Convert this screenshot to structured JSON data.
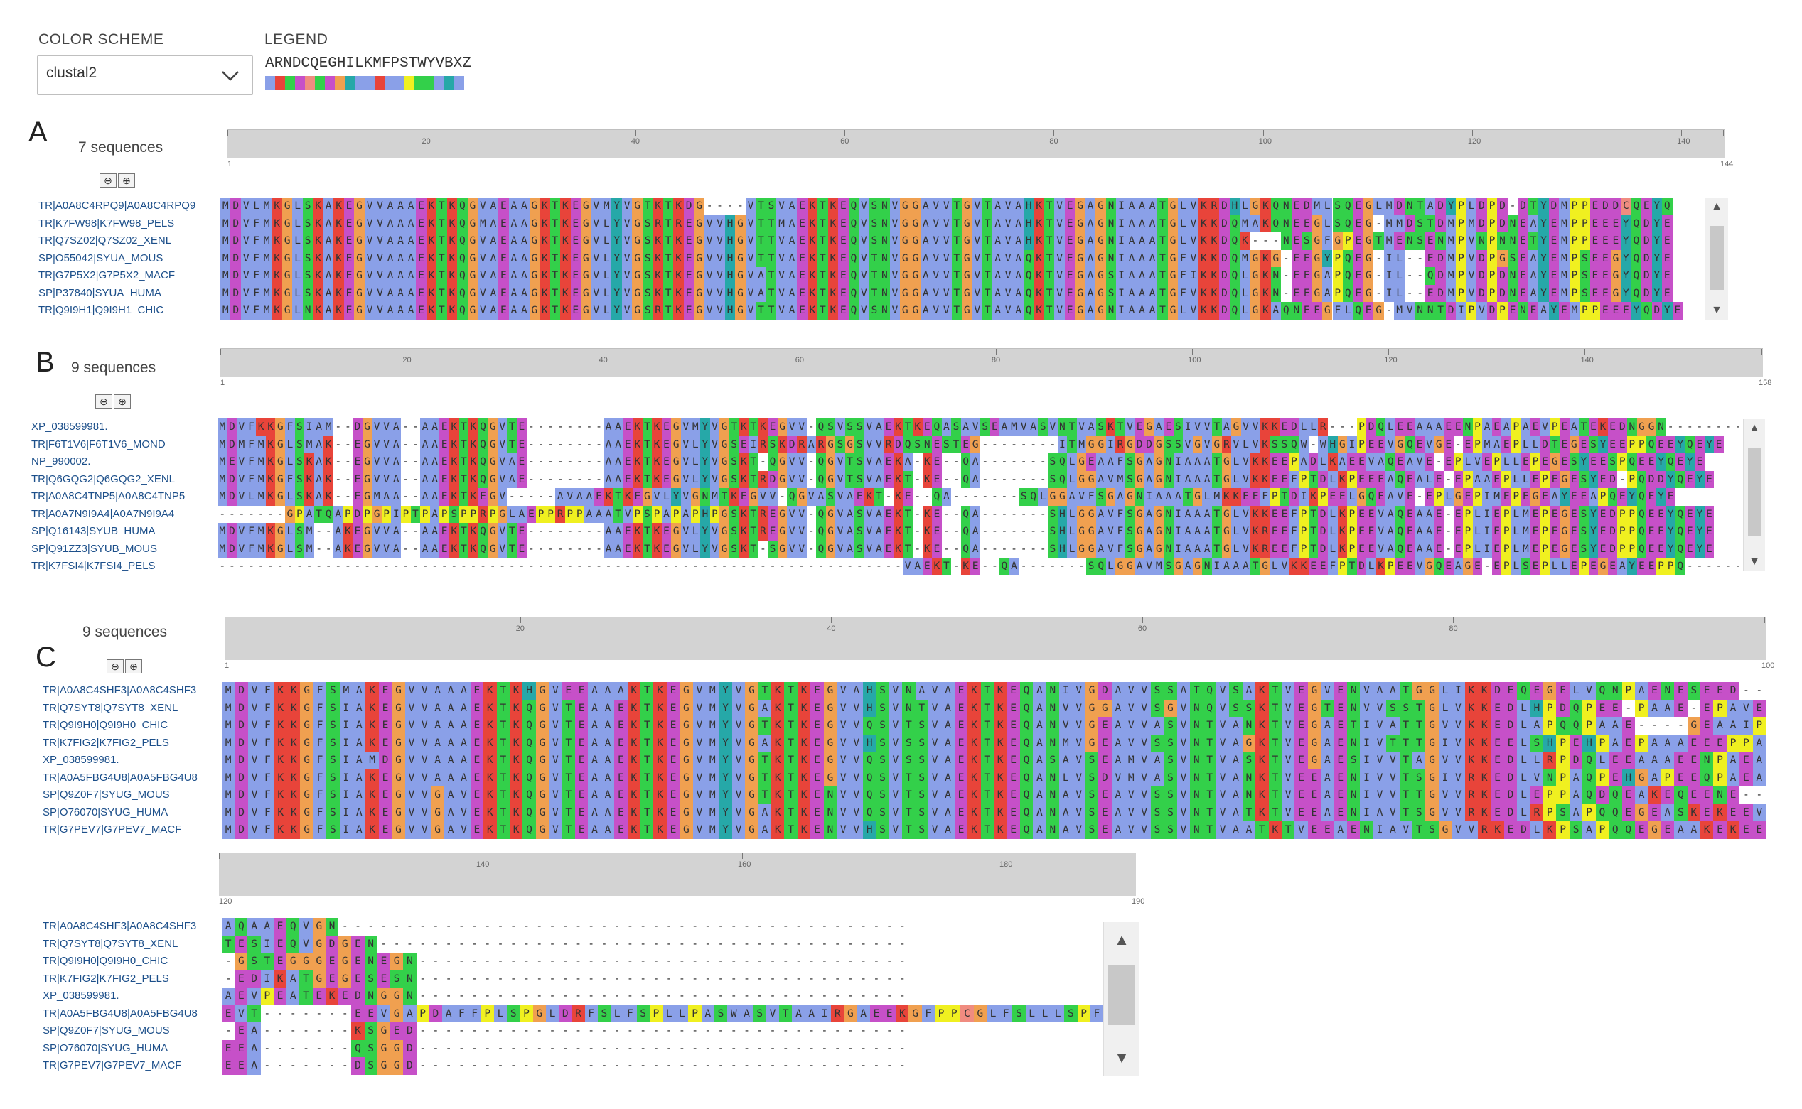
{
  "color_scheme": {
    "label": "COLOR SCHEME",
    "value": "clustal2"
  },
  "legend": {
    "label": "LEGEND",
    "letters": "ARNDCQEGHILKMFPSTWYVBXZ",
    "colors": [
      "#8aa0e8",
      "#e8443a",
      "#33d04a",
      "#c650c8",
      "#f08c80",
      "#33d04a",
      "#c650c8",
      "#f0a050",
      "#26a8a8",
      "#8aa0e8",
      "#8aa0e8",
      "#e8443a",
      "#8aa0e8",
      "#8aa0e8",
      "#f0f020",
      "#33d04a",
      "#33d04a",
      "#8aa0e8",
      "#26a8a8",
      "#8aa0e8",
      "#ffffff",
      "#ffffff",
      "#ffffff"
    ]
  },
  "panels": {
    "A": {
      "letter": "A",
      "count_label": "7 sequences",
      "ruler_ticks": [
        "1",
        "20",
        "40",
        "60",
        "80",
        "100",
        "120",
        "140",
        "144"
      ],
      "names": [
        "TR|A0A8C4RPQ9|A0A8C4RPQ9",
        "TR|K7FW98|K7FW98_PELS",
        "TR|Q7SZ02|Q7SZ02_XENL",
        "SP|O55042|SYUA_MOUS",
        "TR|G7P5X2|G7P5X2_MACF",
        "SP|P37840|SYUA_HUMA",
        "TR|Q9I9H1|Q9I9H1_CHIC"
      ],
      "rows": [
        "MDVLMKGLSKAKEGVVAAAEKTKQGVAEAAGKTKEGVMYVGTKTKDG----VTSVAEKTKEQVSNVGGAVVTGVTAVAHKTVEGAGNIAAATGLVKRDHLGKQNEDMLSQEGLMDNTADYPLDPD-DTYDMPPEDDCQEYQ",
        "MDVFMKGLSKAKEGVVAAAEKTKQGMAEAAGKTKEGVLYVGSRTREGVVHGVTTMAEKTKEQVSNVGGAVVTGVTAVAHKTVEGAGNIAAATGLVKKDQMAKQNEEGLSQEG-MMDSTDMPMDPDNEAYEMPPEEEYQDYE",
        "MDVFMKGLSKAKEGVVAAAEKTKQGVAEAAGKTKEGVLYVGSKTKEGVVHGVTTVAEKTKEQVSNVGGAVVTGVTAVAHKTVEGAGNIAAATGLVKKDQK---NESGFGPEGTMENSENMPVNPNNETYEMPPEEEYQDYE",
        "MDVFMKGLSKAKEGVVAAAEKTKQGVAEAAGKTKEGVLYVGSKTKEGVVHGVTTVAEKTKEQVTNVGGAVVTGVTAVAQKTVEGAGNIAAATGFVKKDQMGKG-EEGYPQEG-IL--EDMPVDPGSEAYEMPSEEGYQDYE",
        "MDVFMKGLSKAKEGVVAAAEKTKQGVAEAAGKTKEGVLYVGSKTKEGVVHGVATVAEKTKEQVTNVGGAVVTGVTAVAQKTVEGAGSIAAATGFIKKDQLGKN-EEGAPQEG-IL--QDMPVDPDNEAYEMPSEEGYQDYE",
        "MDVFMKGLSKAKEGVVAAAEKTKQGVAEAAGKTKEGVLYVGSKTKEGVVHGVATVAEKTKEQVTNVGGAVVTGVTAVAQKTVEGAGSIAAATGFVKKDQLGKN-EEGAPQEG-IL--EDMPVDPDNEAYEMPSEEGYQDYE",
        "MDVFMKGLNKAKEGVVAAAEKTKQGVAEAAGKTKEGVLYVGSRTKEGVVHGVTTVAEKTKEQVSNVGGAVVTGVTAVAQKTVEGAGNIAAATGLVKKDQLGKAQNEEGFLQEG-MVNNTDIPVDPENEAYEMPPEEEYQDYE"
      ]
    },
    "B": {
      "letter": "B",
      "count_label": "9 sequences",
      "ruler_ticks": [
        "1",
        "20",
        "40",
        "60",
        "80",
        "100",
        "120",
        "140",
        "158"
      ],
      "names": [
        "XP_038599981.",
        "TR|F6T1V6|F6T1V6_MOND",
        "NP_990002.",
        "TR|Q6GQG2|Q6GQG2_XENL",
        "TR|A0A8C4TNP5|A0A8C4TNP5",
        "TR|A0A7N9I9A4|A0A7N9I9A4_",
        "SP|Q16143|SYUB_HUMA",
        "SP|Q91ZZ3|SYUB_MOUS",
        "TR|K7FSI4|K7FSI4_PELS"
      ],
      "rows": [
        "MDVFKKGFSIAM--DGVVA--AAEKTKQGVTE--------AAEKTKEGVMYVGTKTKEGVV-QSVSSVAEKTKEQASAVSEAMVASVNTVASKTVEGAESIVVTAGVVKKEDLLR---PDQLEEAAAEENPAEAPAEVPEATEKEDNGGN--------",
        "MDMFMKGLSMAK--EGVVA--AAEKTKQGVTE--------AAEKTKEGVLYVGSEIRSKDRARGSGSVVRDQSNESTEG--------ITMGGIRGDDGSSVGVGRVLVKSSQW-WHGIPEEVGQEVGE-EPMAEPLLDTEGESYEEPPQEEYQEYE",
        "MEVFMKGLSKAK--EGVVA--AAEKTKQGVAE--------AAEKTKEGVLYVGSKT-QGVV-QGVTSVAEKA-KE--QA-------SQLGEAAFSGAGNIAAATGLVKKEEPADLKAEEVAQEAVE-EPLVEPLLEPEGESYEESPQEEYQEYE",
        "MDVFMKGFSKAK--EGVVA--AAEKTKQGVAE--------AAEKTKEGVLYVGSKTRDGVV-QGVTSVAEKT-KE--QA-------SQLGGAVMSGAGNIAAATGLVKKEEFPTDLKPEEEAQEALE-EPAAEPLLEPEGESYED-PQDDYQEYE",
        "MDVLMKGLSKAK--EGMAA--AAEKTKEGV-----AVAAEKTKEGVLYVGNMTKEGVV-QGVASVAEKT-KE--QA-------SQLGGAVFSGAGNIAAATGLMKKEEFPTDIKPEELGQEAVE-EPLGEPIMEPEGEAYEEAPQEYQEYE",
        "-------GPATQAPDPGPIPTPAPSPPRPGLAEPPRPPAAATVPSPAPAPHPGSKTREGVV-QGVASVAEKT-KE--QA-------SHLGGAVFSGAGNIAAATGLVKKEEFPTDLKPEEVAQEAAE-EPLIEPLMEPEGESYEDPPQEEYQEYE",
        "MDVFMKGLSM--AKEGVVA--AAEKTKQGVTE--------AAEKTKEGVLYVGSKTREGVV-QGVASVAEKT-KE--QA-------SHLGGAVFSGAGNIAAATGLVKREEFPTDLKPEEVAQEAAE-EPLIEPLMEPEGESYEDPPQEEYQEYE",
        "MDVFMKGLSM--AKEGVVA--AAEKTKQGVTE--------AAEKTKEGVLYVGSKT-SGVV-QGVASVAEKT-KE--QA-------SHLGGAVFSGAGNIAAATGLVKREEFPTDLKPEEVAQEAAE-EPLIEPLMEPEGESYEDPPQEEYQEYE",
        "-----------------------------------------------------------------------VAEKT-KE--QA-------SQLGGAVMSGAGNIAAATGLVKKEEFPTDLKPEEVGQEAGE-EPLSEPLLEPEGEAYEEPPQ--------"
      ]
    },
    "C": {
      "letter": "C",
      "count_label": "9 sequences",
      "ruler_ticks": [
        "1",
        "20",
        "40",
        "60",
        "80",
        "100"
      ],
      "ruler2_ticks": [
        "120",
        "140",
        "160",
        "180",
        "190"
      ],
      "names": [
        "TR|A0A8C4SHF3|A0A8C4SHF3",
        "TR|Q7SYT8|Q7SYT8_XENL",
        "TR|Q9I9H0|Q9I9H0_CHIC",
        "TR|K7FIG2|K7FIG2_PELS",
        "XP_038599981.",
        "TR|A0A5FBG4U8|A0A5FBG4U8",
        "SP|Q9Z0F7|SYUG_MOUS",
        "SP|O76070|SYUG_HUMA",
        "TR|G7PEV7|G7PEV7_MACF"
      ],
      "rows": [
        "MDVFKKGFSMAKEGVVAAAEKTKHGVEEAAAKTKEGVMYVGTKTKEGVAHSVNAVAEKTKEQANIVGDAVVSSATQVSAKTVEGVENVAATGGLIKKDEQEGELVQNPAENESEED---",
        "MDVFKKGFSIAKEGVVAAAEKTKQGVTEAAEKTKEGVMYVGAKTKEGVVHSVNTVAEKTKEQANVVGGAVVSGVNQVSSKTVEGTENVVSSTGLVKKEDLHPDQPEE-PAAE-EPAVEA",
        "MDVFKKGFSIAKEGVVAAAEKTKQGVTEAAEKTKEGVMYVGTKTKEGVVQSVTSVAEKTKEQANVVGEAVVASVNTVANKTVEGAETIVATTGVVKKEDLAPQQPAAE----GEAAIP-",
        "MDVFKKGFSIAKEGVVAAAEKTKQGVTEAAEKTKEGVMYVGAKTKEGVVHSVSSVAEKTKEQANMVGEAVVSSVNTVAGKTVEGAENIVTTTGIVKKEELSHPEHPAEPAAAEEEPPA-",
        "MDVFKKGFSIAMDGVVAAAEKTKQGVTEAAEKTKEGVMYVGTKTKEGVVQSVSSVAEKTKEQASAVSEAMVASVNTVASKTVEGAESIVVTAGVVKKEDLLRPDQLEEAAAEENPAEAP",
        "MDVFKKGFSIAKEGVVAAAEKTKQGVTEAAEKTKEGVMYVGTKTKEGVVQSVTSVAEKTKEQANLVSDVMVASVNTVANKTVEEAENIVVTSGIVRKEDLVNPAQPEHGAPEEQPAEAA",
        "MDVFKKGFSIAKEGVVGAVEKTKQGVTEAAEKTKEGVMYVGTKTKENVVQSVTSVAEKTKEQANAVSEAVVSSVNTVANKTVEEAENIVVTTGVVRKEDLEPPAQDQEAKEQEENE---",
        "MDVFKKGFSIAKEGVVGAVEKTKQGVTEAAEKTKEGVMYVGAKTKENVVQSVTSVAEKTKEQANAVSEAVVSSVNTVATKTVEEAENIAVTSGVVRKEDLRPSAPQQEGEASKEKEEVA",
        "MDVFKKGFSIAKEGVVGAVEKTKQGVTEAAEKTKEGVMYVGAKTKENVVHSVTSVAEKTKEQANAVSEAVVSSVNTVAATKTVEEAENIAVTSGVVRKEDLKPSAPQQEGEAAKEKEEVA"
      ],
      "rows2": [
        "AQAAEQVGN--------------------------------------------",
        "TESIEQVGDGEN-----------------------------------------",
        "-GSTEGGGEGENEGN--------------------------------------",
        "-EDIKATGEGESESN--------------------------------------",
        "AEVPEATEKEDNGGN--------------------------------------",
        "EVT-------EEVGAPDAFFPLSPGLDRFSLFSPLLPASWASVTAAIRGAEEKGFPPCGLFSLLLSPF",
        "-EA-------KSGED--------------------------------------",
        "EEA-------QSGGD--------------------------------------",
        "EEA-------DSGGD--------------------------------------"
      ]
    }
  }
}
